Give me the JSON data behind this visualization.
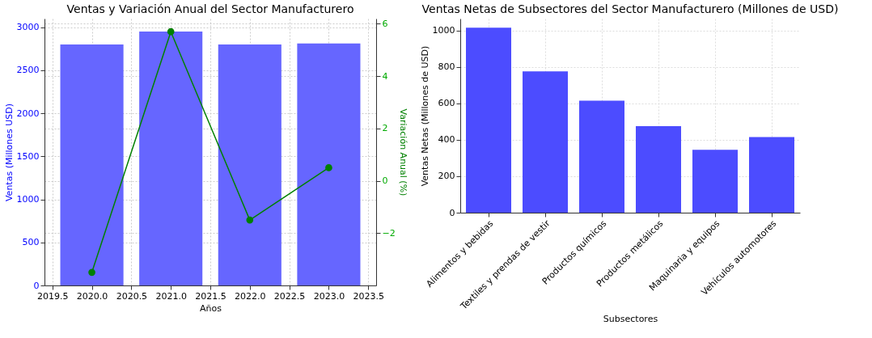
{
  "chart_data": [
    {
      "type": "bar",
      "title": "Ventas y Variación Anual del Sector Manufacturero",
      "xlabel": "Años",
      "ylabel": "Ventas (Millones USD)",
      "y2label": "Variación Anual (%)",
      "x": [
        2020,
        2021,
        2022,
        2023
      ],
      "series": [
        {
          "type": "bar",
          "color": "#6666ff",
          "values": [
            2800,
            2950,
            2800,
            2810
          ]
        },
        {
          "type": "line",
          "axis": "y2",
          "color": "#008000",
          "marker": "circle",
          "values": [
            -3.5,
            5.7,
            -1.5,
            0.5
          ]
        }
      ],
      "xlim": [
        2019.4,
        2023.6
      ],
      "xticks": [
        {
          "value": 2019.5,
          "label": "2019.5"
        },
        {
          "value": 2020,
          "label": "2020.0"
        },
        {
          "value": 2020.5,
          "label": "2020.5"
        },
        {
          "value": 2021,
          "label": "2021.0"
        },
        {
          "value": 2021.5,
          "label": "2021.5"
        },
        {
          "value": 2022,
          "label": "2022.0"
        },
        {
          "value": 2022.5,
          "label": "2022.5"
        },
        {
          "value": 2023,
          "label": "2023.0"
        },
        {
          "value": 2023.5,
          "label": "2023.5"
        }
      ],
      "ylim": [
        0,
        3100
      ],
      "yticks": [
        0,
        500,
        1000,
        1500,
        2000,
        2500,
        3000
      ],
      "y2lim": [
        -4,
        6.2
      ],
      "y2ticks": [
        {
          "value": -2,
          "label": "−2"
        },
        0,
        2,
        4,
        6
      ],
      "grid": true
    },
    {
      "type": "bar",
      "title": "Ventas Netas de Subsectores del Sector Manufacturero (Millones de USD)",
      "xlabel": "Subsectores",
      "ylabel": "Ventas Netas (Millones de USD)",
      "categories": [
        "Alimentos y bebidas",
        "Textiles y prendas de vestir",
        "Productos químicos",
        "Productos metálicos",
        "Maquinaria y equipos",
        "Vehículos automotores"
      ],
      "series": [
        {
          "color": "#4c4cff",
          "values": [
            1015,
            775,
            615,
            475,
            345,
            415
          ]
        }
      ],
      "ylim": [
        0,
        1065
      ],
      "yticks": [
        0,
        200,
        400,
        600,
        800,
        1000
      ],
      "grid": true
    }
  ]
}
